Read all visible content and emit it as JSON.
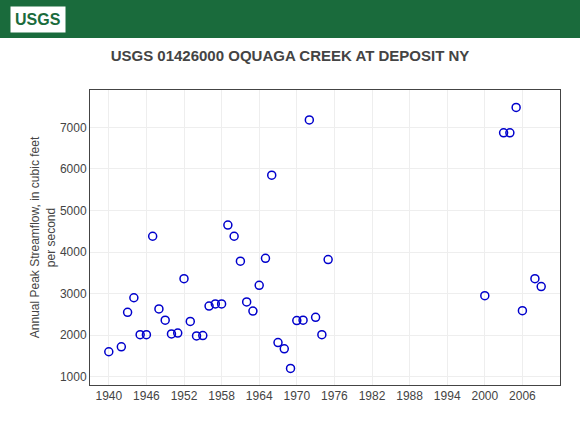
{
  "chart_data": {
    "type": "scatter",
    "title": "USGS 01426000 OQUAGA CREEK AT DEPOSIT NY",
    "ylabel": "Annual Peak Streamflow, in cubic feet\nper second",
    "annotations": [
      "USGS"
    ],
    "x": [
      1940,
      1942,
      1943,
      1944,
      1945,
      1946,
      1947,
      1948,
      1949,
      1950,
      1951,
      1952,
      1953,
      1954,
      1955,
      1956,
      1957,
      1958,
      1959,
      1960,
      1961,
      1962,
      1963,
      1964,
      1965,
      1966,
      1967,
      1968,
      1969,
      1970,
      1971,
      1972,
      1973,
      1974,
      1975,
      2000,
      2003,
      2004,
      2005,
      2006,
      2008,
      2009
    ],
    "values": [
      1600,
      1720,
      2550,
      2900,
      2010,
      2010,
      4380,
      2630,
      2360,
      2030,
      2050,
      3360,
      2330,
      1980,
      1990,
      2700,
      2750,
      2750,
      4650,
      4380,
      3780,
      2800,
      2580,
      3200,
      3850,
      5850,
      1820,
      1670,
      1200,
      2350,
      2360,
      7180,
      2430,
      2010,
      3820,
      2950,
      6870,
      6870,
      7480,
      2590,
      3360,
      3170
    ],
    "color": "#0000cc",
    "marker": "circle-open",
    "xlim": [
      1937,
      2012
    ],
    "ylim": [
      800,
      7900
    ],
    "xticks": [
      1940,
      1946,
      1952,
      1958,
      1964,
      1970,
      1976,
      1982,
      1988,
      1994,
      2000,
      2006
    ],
    "yticks": [
      1000,
      2000,
      3000,
      4000,
      5000,
      6000,
      7000
    ],
    "grid": true
  }
}
